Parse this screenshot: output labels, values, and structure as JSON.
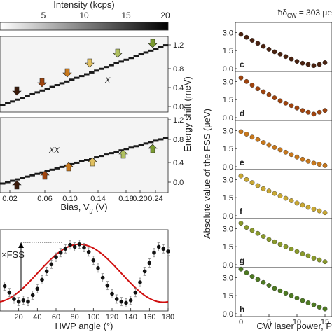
{
  "colorbar": {
    "title": "Intensity (kcps)",
    "ticks": [
      "5",
      "10",
      "15",
      "20"
    ]
  },
  "panel_a": {
    "ylabel": "Energy shift (meV)",
    "top_label": "X",
    "bottom_label": "XX",
    "top_yticks": [
      "0.0",
      "0.4",
      "0.8",
      "1.2"
    ],
    "bottom_yticks": [
      "0.0",
      "0.4",
      "0.8",
      "1.2"
    ],
    "xticks": [
      "0.02",
      "0.06",
      "0.10",
      "0.14",
      "0.18",
      "0.20",
      "0.24"
    ],
    "xlabel": "Bias, V",
    "xlabel_sub": "g",
    "xlabel_unit": " (V)"
  },
  "panel_fss": {
    "label": "×FSS",
    "xlabel": "HWP angle (°)",
    "xticks": [
      "20",
      "40",
      "60",
      "80",
      "100",
      "120",
      "140",
      "160",
      "180"
    ]
  },
  "panel_right": {
    "header": "ħδ",
    "header_sub": "CW",
    "header_value": " = 303 μe",
    "ylabel": "Absolute value of the FSS (μeV)",
    "xlabel": "CW laser power, P",
    "xticks": [
      "0",
      "5",
      "10",
      "15"
    ],
    "yticks": [
      "0.0",
      "1.5",
      "3.0"
    ],
    "panel_letters": [
      "c",
      "d",
      "e",
      "f",
      "g",
      "h"
    ],
    "colors": [
      "#4a2210",
      "#a0440e",
      "#c8781c",
      "#c9a834",
      "#8a9a2c",
      "#4e7a22"
    ]
  },
  "chart_data": [
    {
      "type": "line",
      "panel": "fss-vs-hwp",
      "xlabel": "HWP angle (°)",
      "xlim": [
        0,
        180
      ],
      "series": [
        {
          "x": [
            5,
            10,
            15,
            20,
            25,
            30,
            35,
            40,
            45,
            50,
            55,
            60,
            65,
            70,
            75,
            80,
            85,
            90,
            95,
            100,
            105,
            110,
            115,
            120,
            125,
            130,
            135,
            140,
            145,
            150,
            155,
            160,
            165,
            170,
            175,
            180
          ],
          "y": [
            0.32,
            0.22,
            0.12,
            0.08,
            0.1,
            0.08,
            0.18,
            0.28,
            0.42,
            0.55,
            0.66,
            0.77,
            0.84,
            0.9,
            0.96,
            0.93,
            0.97,
            0.92,
            0.85,
            0.72,
            0.6,
            0.45,
            0.33,
            0.2,
            0.12,
            0.08,
            0.06,
            0.1,
            0.22,
            0.38,
            0.55,
            0.68,
            0.84,
            0.93,
            0.9,
            0.86
          ]
        }
      ]
    },
    {
      "type": "scatter",
      "panel": "c",
      "xlabel": "CW laser power, P",
      "ylabel": "Absolute value of the FSS (μeV)",
      "ylim": [
        0,
        3.6
      ],
      "series": [
        {
          "x": [
            0,
            1,
            2,
            3,
            4,
            5,
            6,
            7,
            8,
            9,
            10,
            11,
            12,
            13,
            14,
            15
          ],
          "y": [
            2.85,
            2.6,
            2.35,
            2.1,
            1.85,
            1.6,
            1.4,
            1.2,
            1.0,
            0.8,
            0.6,
            0.45,
            0.35,
            0.25,
            0.35,
            0.5
          ]
        }
      ]
    },
    {
      "type": "scatter",
      "panel": "d",
      "ylim": [
        0,
        3.6
      ],
      "series": [
        {
          "x": [
            0,
            1,
            2,
            3,
            4,
            5,
            6,
            7,
            8,
            9,
            10,
            11,
            12,
            13,
            14,
            15
          ],
          "y": [
            3.3,
            3.0,
            2.7,
            2.4,
            2.15,
            1.9,
            1.65,
            1.4,
            1.2,
            1.0,
            0.8,
            0.6,
            0.45,
            0.3,
            0.45,
            0.6
          ]
        }
      ]
    },
    {
      "type": "scatter",
      "panel": "e",
      "ylim": [
        0,
        3.6
      ],
      "series": [
        {
          "x": [
            0,
            1,
            2,
            3,
            4,
            5,
            6,
            7,
            8,
            9,
            10,
            11,
            12,
            13,
            14,
            15
          ],
          "y": [
            2.9,
            2.7,
            2.45,
            2.25,
            2.0,
            1.8,
            1.6,
            1.4,
            1.2,
            1.0,
            0.8,
            0.62,
            0.45,
            0.3,
            0.2,
            0.1
          ]
        }
      ]
    },
    {
      "type": "scatter",
      "panel": "f",
      "ylim": [
        0,
        3.6
      ],
      "series": [
        {
          "x": [
            0,
            1,
            2,
            3,
            4,
            5,
            6,
            7,
            8,
            9,
            10,
            11,
            12,
            13,
            14,
            15
          ],
          "y": [
            3.3,
            3.0,
            2.75,
            2.5,
            2.25,
            2.05,
            1.85,
            1.65,
            1.45,
            1.25,
            1.05,
            0.88,
            0.7,
            0.55,
            0.4,
            0.25
          ]
        }
      ]
    },
    {
      "type": "scatter",
      "panel": "g",
      "ylim": [
        0,
        3.6
      ],
      "series": [
        {
          "x": [
            0,
            1,
            2,
            3,
            4,
            5,
            6,
            7,
            8,
            9,
            10,
            11,
            12,
            13,
            14,
            15
          ],
          "y": [
            3.45,
            3.1,
            2.85,
            2.6,
            2.35,
            2.1,
            1.9,
            1.7,
            1.5,
            1.3,
            1.1,
            0.9,
            0.75,
            0.55,
            0.4,
            0.25
          ]
        }
      ]
    },
    {
      "type": "scatter",
      "panel": "h",
      "ylim": [
        0,
        3.6
      ],
      "series": [
        {
          "x": [
            0,
            1,
            2,
            3,
            4,
            5,
            6,
            7,
            8,
            9,
            10,
            11,
            12,
            13,
            14,
            15
          ],
          "y": [
            3.7,
            3.4,
            3.1,
            2.85,
            2.6,
            2.35,
            2.1,
            1.9,
            1.7,
            1.5,
            1.3,
            1.1,
            0.9,
            0.75,
            0.55,
            0.4
          ]
        }
      ]
    }
  ]
}
